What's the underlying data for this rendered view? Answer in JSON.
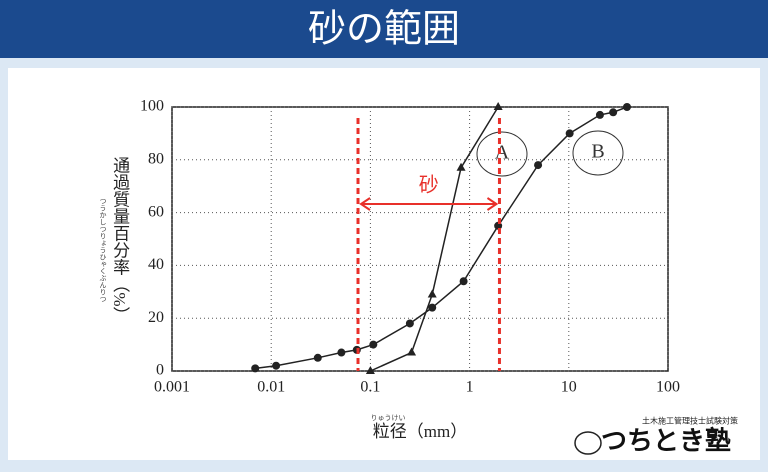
{
  "header": {
    "title": "砂の範囲"
  },
  "chart_data": {
    "type": "line",
    "log_x": true,
    "grid": true,
    "x_label": "粒径（mm）",
    "x_label_ruby": "りゅうけい",
    "y_label": "通過質量百分率（%）",
    "y_label_ruby": "つうかしつりょうひゃくぶんりつ",
    "xlim": [
      0.001,
      100
    ],
    "xticks": [
      0.001,
      0.01,
      0.1,
      1,
      10,
      100
    ],
    "ylim": [
      0,
      100
    ],
    "yticks": [
      0,
      20,
      40,
      60,
      80,
      100
    ],
    "series": [
      {
        "name": "A",
        "color": "#222222",
        "marker": "triangle",
        "x": [
          0.1,
          0.26,
          0.42,
          0.82,
          1.94
        ],
        "values": [
          0,
          7,
          29,
          77,
          100
        ]
      },
      {
        "name": "B",
        "color": "#222222",
        "marker": "circle",
        "x": [
          0.0069,
          0.0112,
          0.0295,
          0.051,
          0.073,
          0.107,
          0.25,
          0.42,
          0.87,
          1.94,
          4.9,
          10.2,
          20.6,
          28,
          38.6
        ],
        "values": [
          1,
          2,
          5,
          7,
          8,
          10,
          18,
          24,
          34,
          55,
          78,
          90,
          97,
          98,
          100
        ]
      }
    ],
    "range": {
      "label": "砂",
      "color": "#e8302a",
      "x": [
        0.075,
        2
      ]
    }
  },
  "logo": {
    "caption": "土木施工管理技士試験対策",
    "name": "つちとき塾"
  }
}
